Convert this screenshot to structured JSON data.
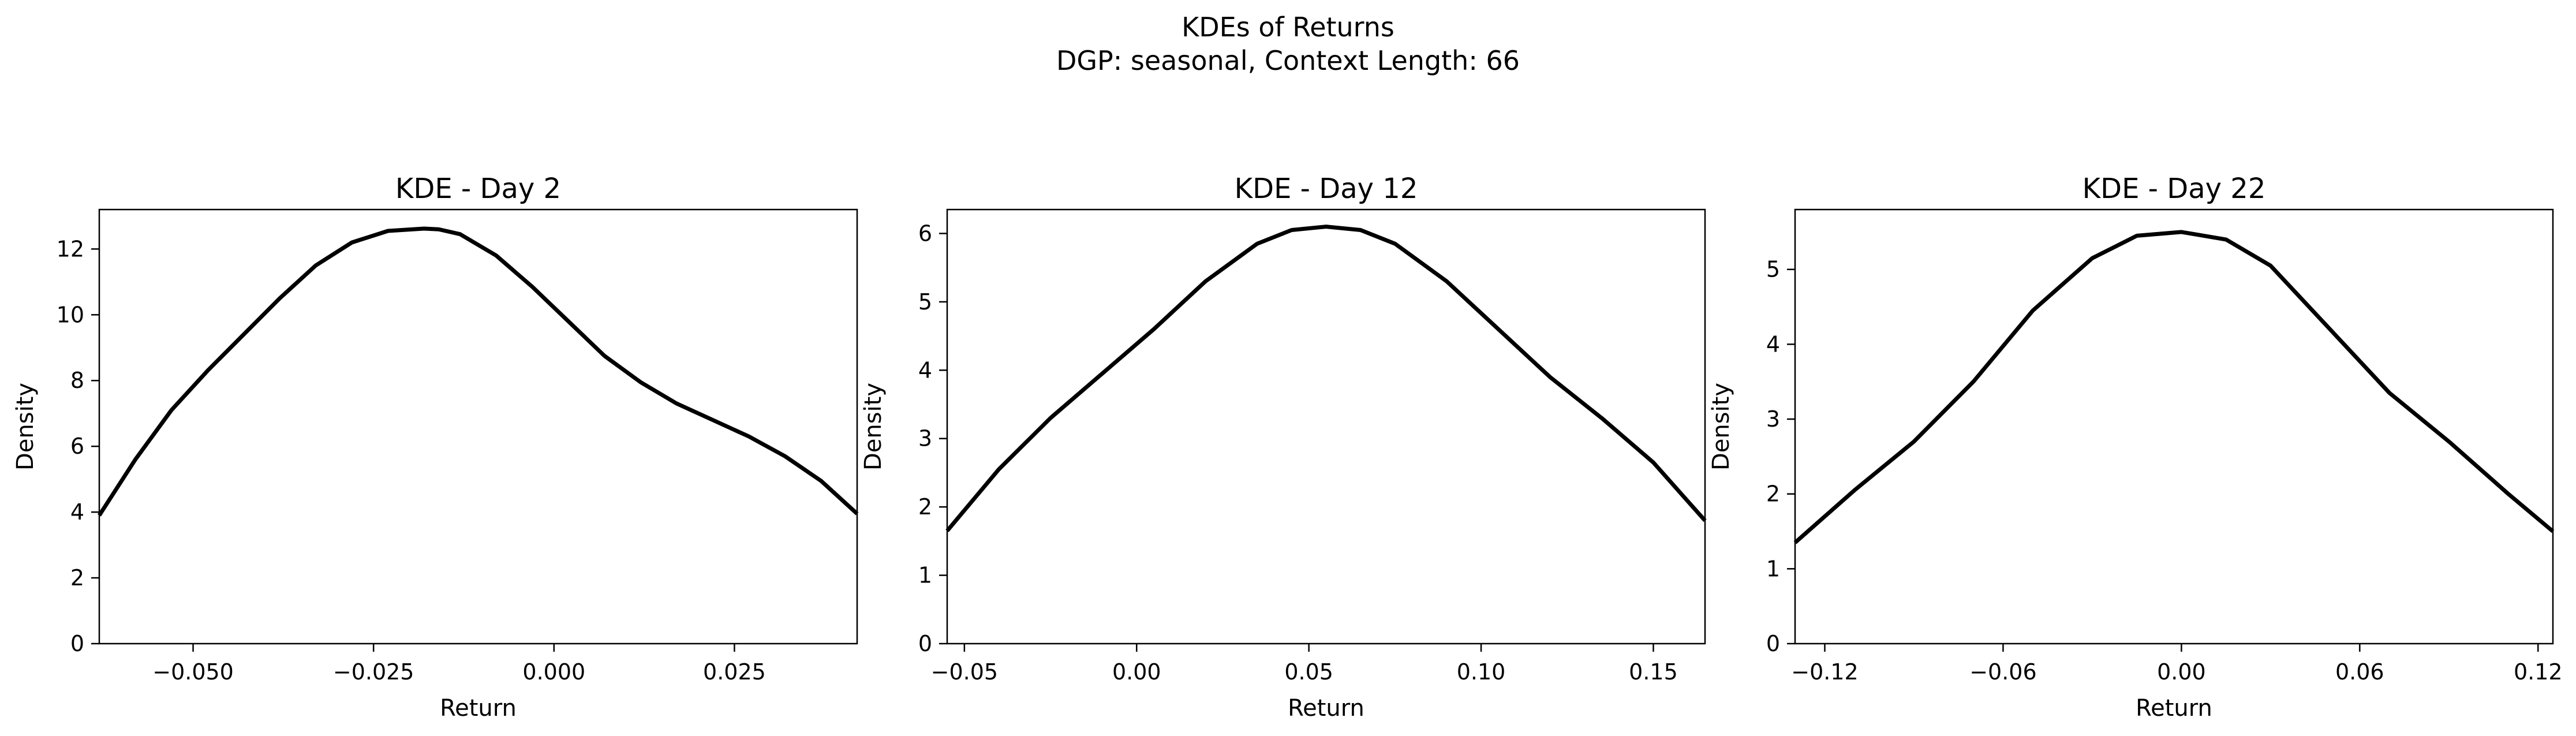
{
  "figure": {
    "title": "KDEs of Returns",
    "subtitle": "DGP: seasonal, Context Length: 66"
  },
  "chart_data": [
    {
      "type": "line",
      "title": "KDE - Day 2",
      "xlabel": "Return",
      "ylabel": "Density",
      "xlim": [
        -0.063,
        0.042
      ],
      "ylim": [
        0,
        13.2
      ],
      "xticks": [
        -0.05,
        -0.025,
        0.0,
        0.025
      ],
      "xtick_labels": [
        "−0.050",
        "−0.025",
        "0.000",
        "0.025"
      ],
      "yticks": [
        0,
        2,
        4,
        6,
        8,
        10,
        12
      ],
      "ytick_labels": [
        "0",
        "2",
        "4",
        "6",
        "8",
        "10",
        "12"
      ],
      "grid": false,
      "series": [
        {
          "color": "#000000",
          "x": [
            -0.063,
            -0.058,
            -0.053,
            -0.048,
            -0.043,
            -0.038,
            -0.033,
            -0.028,
            -0.023,
            -0.018,
            -0.016,
            -0.013,
            -0.008,
            -0.003,
            0.002,
            0.007,
            0.012,
            0.017,
            0.022,
            0.027,
            0.032,
            0.037,
            0.042
          ],
          "y": [
            3.9,
            5.6,
            7.1,
            8.3,
            9.4,
            10.5,
            11.5,
            12.2,
            12.55,
            12.62,
            12.6,
            12.45,
            11.8,
            10.85,
            9.8,
            8.75,
            7.95,
            7.3,
            6.8,
            6.3,
            5.7,
            4.95,
            3.95
          ]
        }
      ]
    },
    {
      "type": "line",
      "title": "KDE - Day 12",
      "xlabel": "Return",
      "ylabel": "Density",
      "xlim": [
        -0.055,
        0.165
      ],
      "ylim": [
        0,
        6.35
      ],
      "xticks": [
        -0.05,
        0.0,
        0.05,
        0.1,
        0.15
      ],
      "xtick_labels": [
        "−0.05",
        "0.00",
        "0.05",
        "0.10",
        "0.15"
      ],
      "yticks": [
        0,
        1,
        2,
        3,
        4,
        5,
        6
      ],
      "ytick_labels": [
        "0",
        "1",
        "2",
        "3",
        "4",
        "5",
        "6"
      ],
      "grid": false,
      "series": [
        {
          "color": "#000000",
          "x": [
            -0.055,
            -0.04,
            -0.025,
            -0.01,
            0.005,
            0.02,
            0.035,
            0.045,
            0.055,
            0.065,
            0.075,
            0.09,
            0.105,
            0.12,
            0.135,
            0.15,
            0.165
          ],
          "y": [
            1.65,
            2.55,
            3.3,
            3.95,
            4.6,
            5.3,
            5.85,
            6.05,
            6.1,
            6.05,
            5.85,
            5.3,
            4.6,
            3.9,
            3.3,
            2.65,
            1.8
          ]
        }
      ]
    },
    {
      "type": "line",
      "title": "KDE - Day 22",
      "xlabel": "Return",
      "ylabel": "Density",
      "xlim": [
        -0.13,
        0.125
      ],
      "ylim": [
        0,
        5.8
      ],
      "xticks": [
        -0.12,
        -0.06,
        0.0,
        0.06,
        0.12
      ],
      "xtick_labels": [
        "−0.12",
        "−0.06",
        "0.00",
        "0.06",
        "0.12"
      ],
      "yticks": [
        0,
        1,
        2,
        3,
        4,
        5
      ],
      "ytick_labels": [
        "0",
        "1",
        "2",
        "3",
        "4",
        "5"
      ],
      "grid": false,
      "series": [
        {
          "color": "#000000",
          "x": [
            -0.13,
            -0.11,
            -0.09,
            -0.07,
            -0.05,
            -0.03,
            -0.015,
            0.0,
            0.015,
            0.03,
            0.05,
            0.07,
            0.09,
            0.11,
            0.125
          ],
          "y": [
            1.35,
            2.05,
            2.7,
            3.5,
            4.45,
            5.15,
            5.45,
            5.5,
            5.4,
            5.05,
            4.2,
            3.35,
            2.7,
            2.0,
            1.5
          ]
        }
      ]
    }
  ]
}
